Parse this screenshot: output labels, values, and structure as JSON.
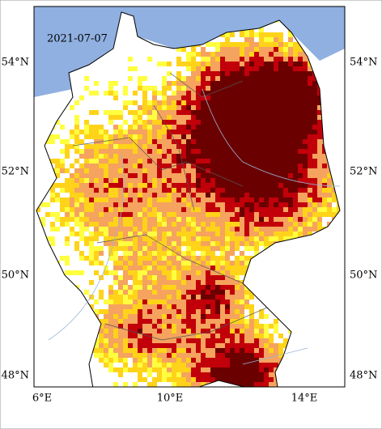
{
  "map": {
    "date": "2021-07-07",
    "lat_labels": [
      "54°N",
      "52°N",
      "50°N",
      "48°N"
    ],
    "lon_labels": [
      "6°E",
      "10°E",
      "14°E"
    ]
  }
}
